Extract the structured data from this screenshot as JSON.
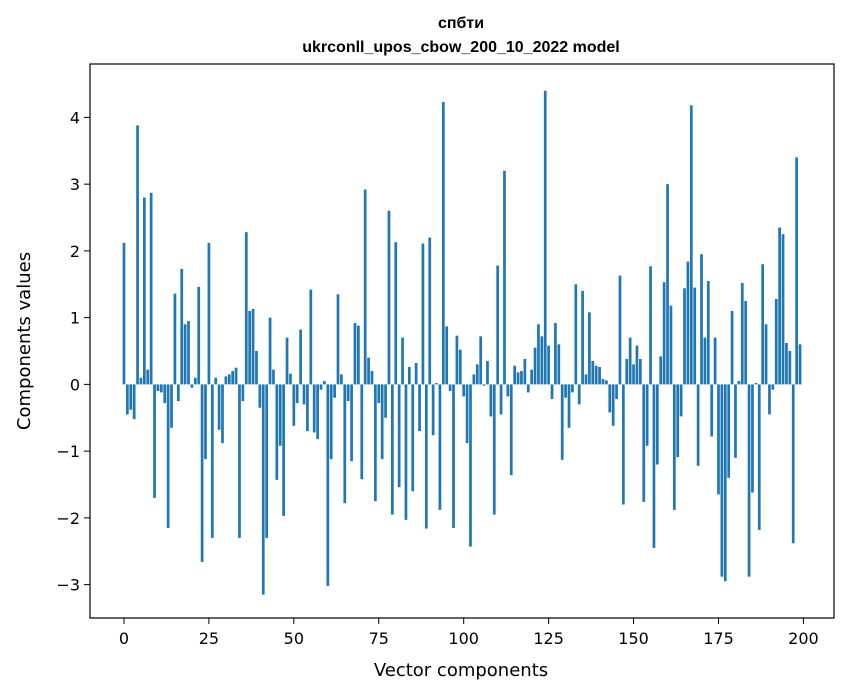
{
  "chart_data": {
    "type": "bar",
    "title": "спбти",
    "subtitle": "ukrconll_upos_cbow_200_10_2022 model",
    "xlabel": "Vector components",
    "ylabel": "Components values",
    "xlim": [
      -10,
      209
    ],
    "ylim": [
      -3.5,
      4.8
    ],
    "xticks": [
      0,
      25,
      50,
      75,
      100,
      125,
      150,
      175,
      200
    ],
    "yticks": [
      -3,
      -2,
      -1,
      0,
      1,
      2,
      3,
      4
    ],
    "grid": false,
    "bar_color": "#1f77b4",
    "values": [
      2.12,
      -0.45,
      -0.38,
      -0.52,
      3.88,
      0.1,
      2.8,
      0.22,
      2.87,
      -1.7,
      -0.1,
      -0.12,
      -0.28,
      -2.15,
      -0.65,
      1.36,
      -0.25,
      1.73,
      0.9,
      0.95,
      -0.05,
      0.1,
      1.46,
      -2.66,
      -1.12,
      2.12,
      -2.3,
      0.1,
      -0.68,
      -0.88,
      0.12,
      0.15,
      0.2,
      0.25,
      -2.3,
      -0.25,
      2.28,
      1.1,
      1.13,
      0.5,
      -0.35,
      -3.15,
      -2.3,
      1.0,
      0.22,
      -1.43,
      -0.92,
      -1.97,
      0.7,
      0.16,
      -0.62,
      -0.28,
      0.82,
      -0.3,
      -0.7,
      1.42,
      -0.72,
      -0.82,
      -0.08,
      0.05,
      -3.02,
      -1.12,
      -0.2,
      1.35,
      0.15,
      -1.78,
      -0.25,
      -1.15,
      0.92,
      0.88,
      -1.42,
      2.92,
      0.4,
      0.2,
      -1.75,
      -0.28,
      -1.12,
      -0.5,
      2.6,
      -1.95,
      2.13,
      -1.54,
      0.7,
      -2.03,
      0.26,
      -1.6,
      0.32,
      -0.7,
      2.11,
      -2.16,
      2.2,
      -0.76,
      0.02,
      -1.88,
      4.23,
      0.87,
      -0.1,
      -2.15,
      0.73,
      0.52,
      -0.18,
      -0.88,
      -2.43,
      0.15,
      0.3,
      0.72,
      -0.02,
      0.35,
      -0.48,
      -1.95,
      1.78,
      -0.45,
      3.2,
      -0.18,
      -1.36,
      0.28,
      0.18,
      0.2,
      0.38,
      -0.12,
      0.22,
      0.55,
      0.9,
      0.72,
      4.4,
      0.58,
      -0.22,
      0.92,
      0.6,
      -1.13,
      -0.2,
      -0.65,
      -0.12,
      1.5,
      -0.3,
      1.4,
      0.15,
      1.08,
      0.35,
      0.28,
      0.26,
      0.08,
      0.06,
      -0.42,
      -0.62,
      -0.22,
      1.63,
      -1.8,
      0.38,
      0.7,
      0.3,
      0.58,
      0.38,
      -1.76,
      -0.92,
      1.77,
      -2.45,
      -1.2,
      0.42,
      1.53,
      3.0,
      1.18,
      -1.88,
      -1.09,
      -0.48,
      1.44,
      1.84,
      4.18,
      1.45,
      -1.22,
      1.95,
      0.7,
      1.55,
      -0.78,
      0.7,
      -1.65,
      -2.88,
      -2.95,
      -1.4,
      1.1,
      -1.1,
      0.05,
      1.52,
      1.25,
      -2.88,
      -1.62,
      0.02,
      -2.18,
      1.8,
      0.9,
      -0.45,
      -0.08,
      1.28,
      2.35,
      2.25,
      0.62,
      0.5,
      -2.38,
      3.4,
      0.6
    ]
  }
}
